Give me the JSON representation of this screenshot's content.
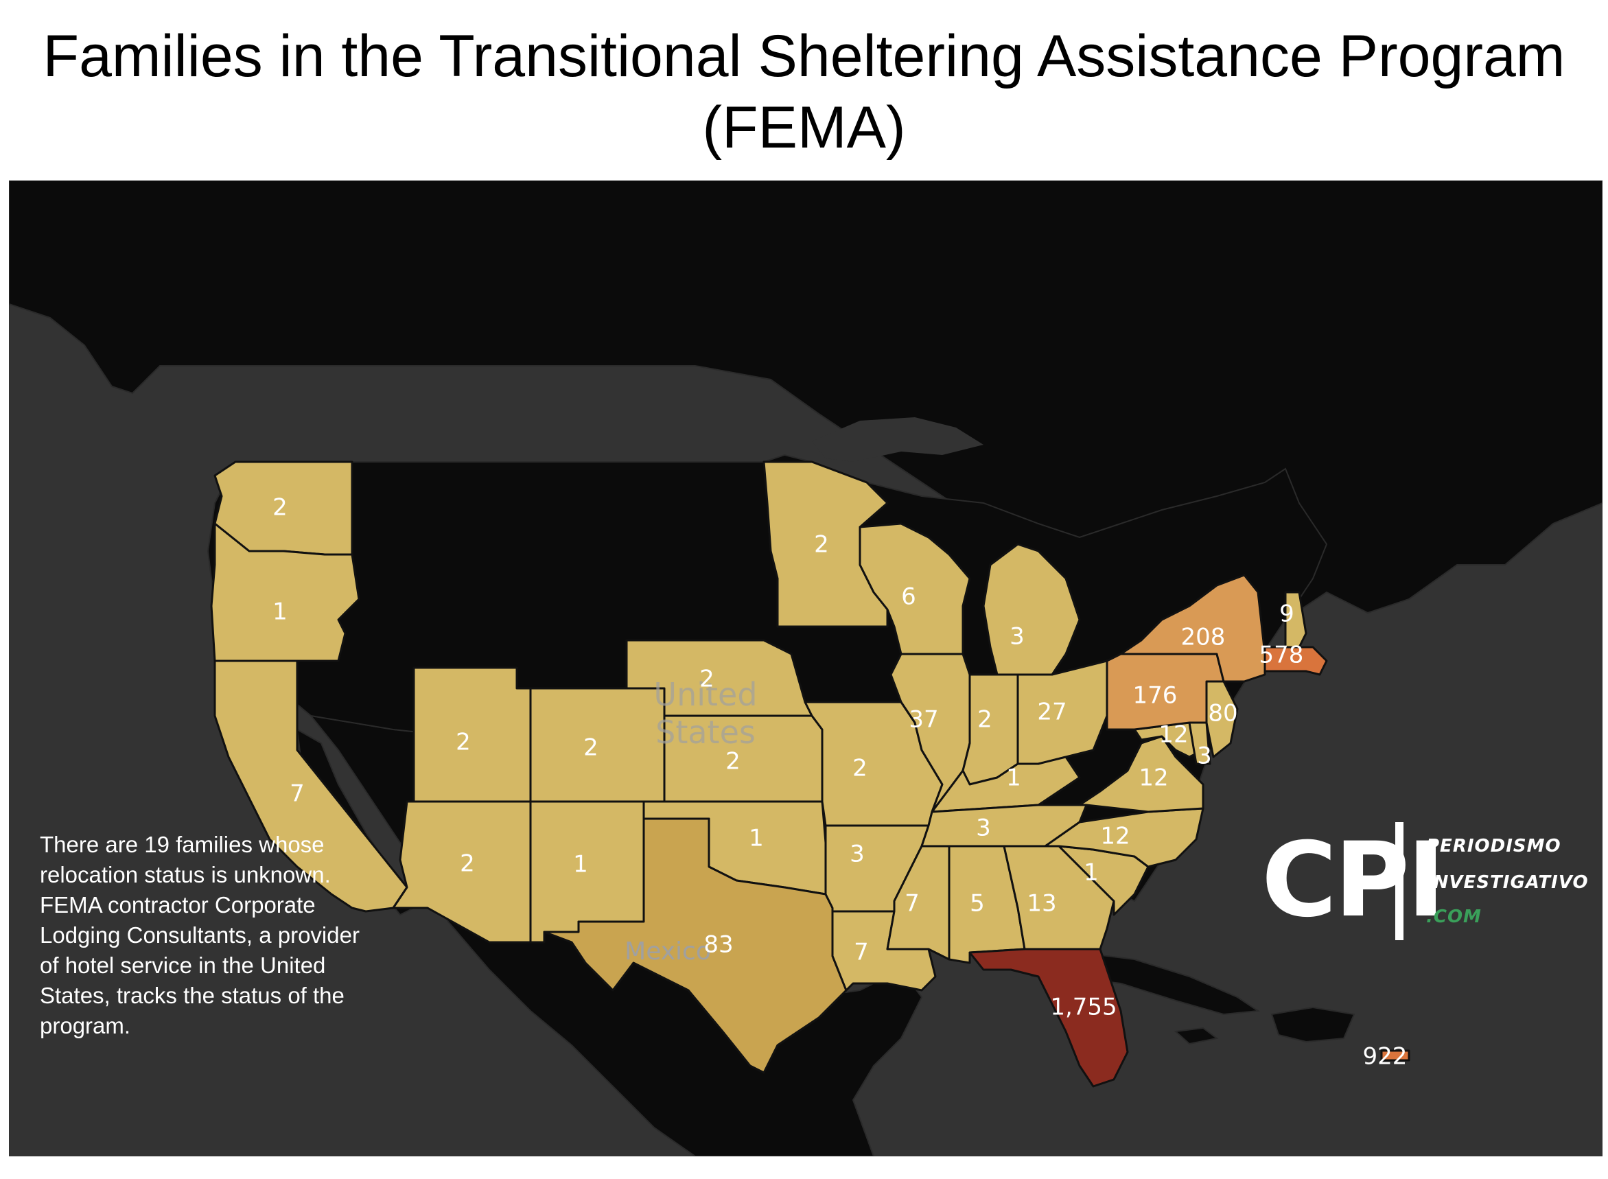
{
  "title": "Families in the Transitional Sheltering Assistance Program (FEMA)",
  "note": "There are 19 families whose relocation status is unknown. FEMA contractor Corporate Lodging Consultants, a provider of hotel service in the United States, tracks the status of the program.",
  "place_labels": {
    "country_us": "United States",
    "country_mexico": "Mexico"
  },
  "logo": {
    "mark": "CPI",
    "line1": "PERIODISMO",
    "line2": "INVESTIGATIVO",
    "line3": ".COM"
  },
  "colors": {
    "water": "#333333",
    "no_data_land": "#0b0b0b",
    "low": "#d4b865",
    "mid_low": "#c9a450",
    "mid": "#d99a55",
    "high": "#d9743c",
    "highest": "#8b2b1f"
  },
  "states": {
    "washington": "2",
    "oregon": "1",
    "california": "7",
    "utah": "2",
    "arizona": "2",
    "colorado": "2",
    "new_mexico": "1",
    "nebraska": "2",
    "kansas": "2",
    "oklahoma": "1",
    "texas": "83",
    "minnesota": "2",
    "wisconsin": "6",
    "missouri": "2",
    "arkansas": "3",
    "louisiana": "7",
    "illinois": "37",
    "michigan": "3",
    "indiana": "2",
    "ohio": "27",
    "kentucky": "1",
    "tennessee": "3",
    "mississippi": "7",
    "alabama": "5",
    "georgia": "13",
    "florida": "1,755",
    "south_carolina": "1",
    "north_carolina": "12",
    "virginia": "12",
    "maryland": "12",
    "delaware": "3",
    "new_jersey": "80",
    "pennsylvania": "176",
    "new_york": "208",
    "new_hampshire": "9",
    "massachusetts": "578",
    "puerto_rico": "922"
  }
}
